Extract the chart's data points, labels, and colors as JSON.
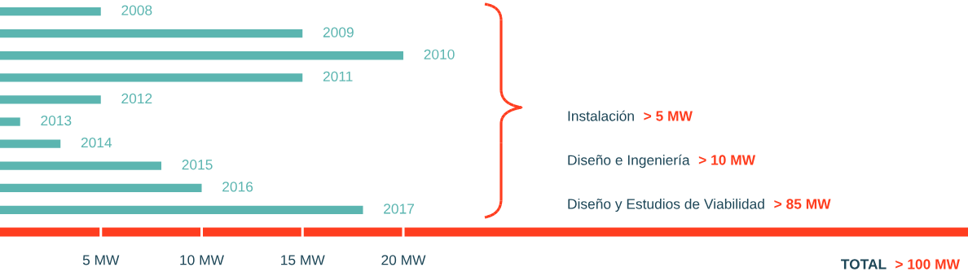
{
  "chart_data": {
    "type": "bar",
    "orientation": "horizontal",
    "categories": [
      "2008",
      "2009",
      "2010",
      "2011",
      "2012",
      "2013",
      "2014",
      "2015",
      "2016",
      "2017"
    ],
    "values": [
      5,
      15,
      20,
      15,
      5,
      1,
      3,
      8,
      10,
      18
    ],
    "color": "#5bb5b0",
    "xlim": [
      0,
      48
    ],
    "xticks": [
      {
        "value": 5,
        "label": "5 MW"
      },
      {
        "value": 10,
        "label": "10 MW"
      },
      {
        "value": 15,
        "label": "15 MW"
      },
      {
        "value": 20,
        "label": "20 MW"
      }
    ],
    "grid": false,
    "annotations": [
      "Instalación",
      "> 5 MW",
      "Diseño e Ingeniería",
      "> 10 MW",
      "Diseño y Estudios de Viabilidad",
      "> 85 MW",
      "TOTAL",
      "> 100 MW"
    ]
  }
}
